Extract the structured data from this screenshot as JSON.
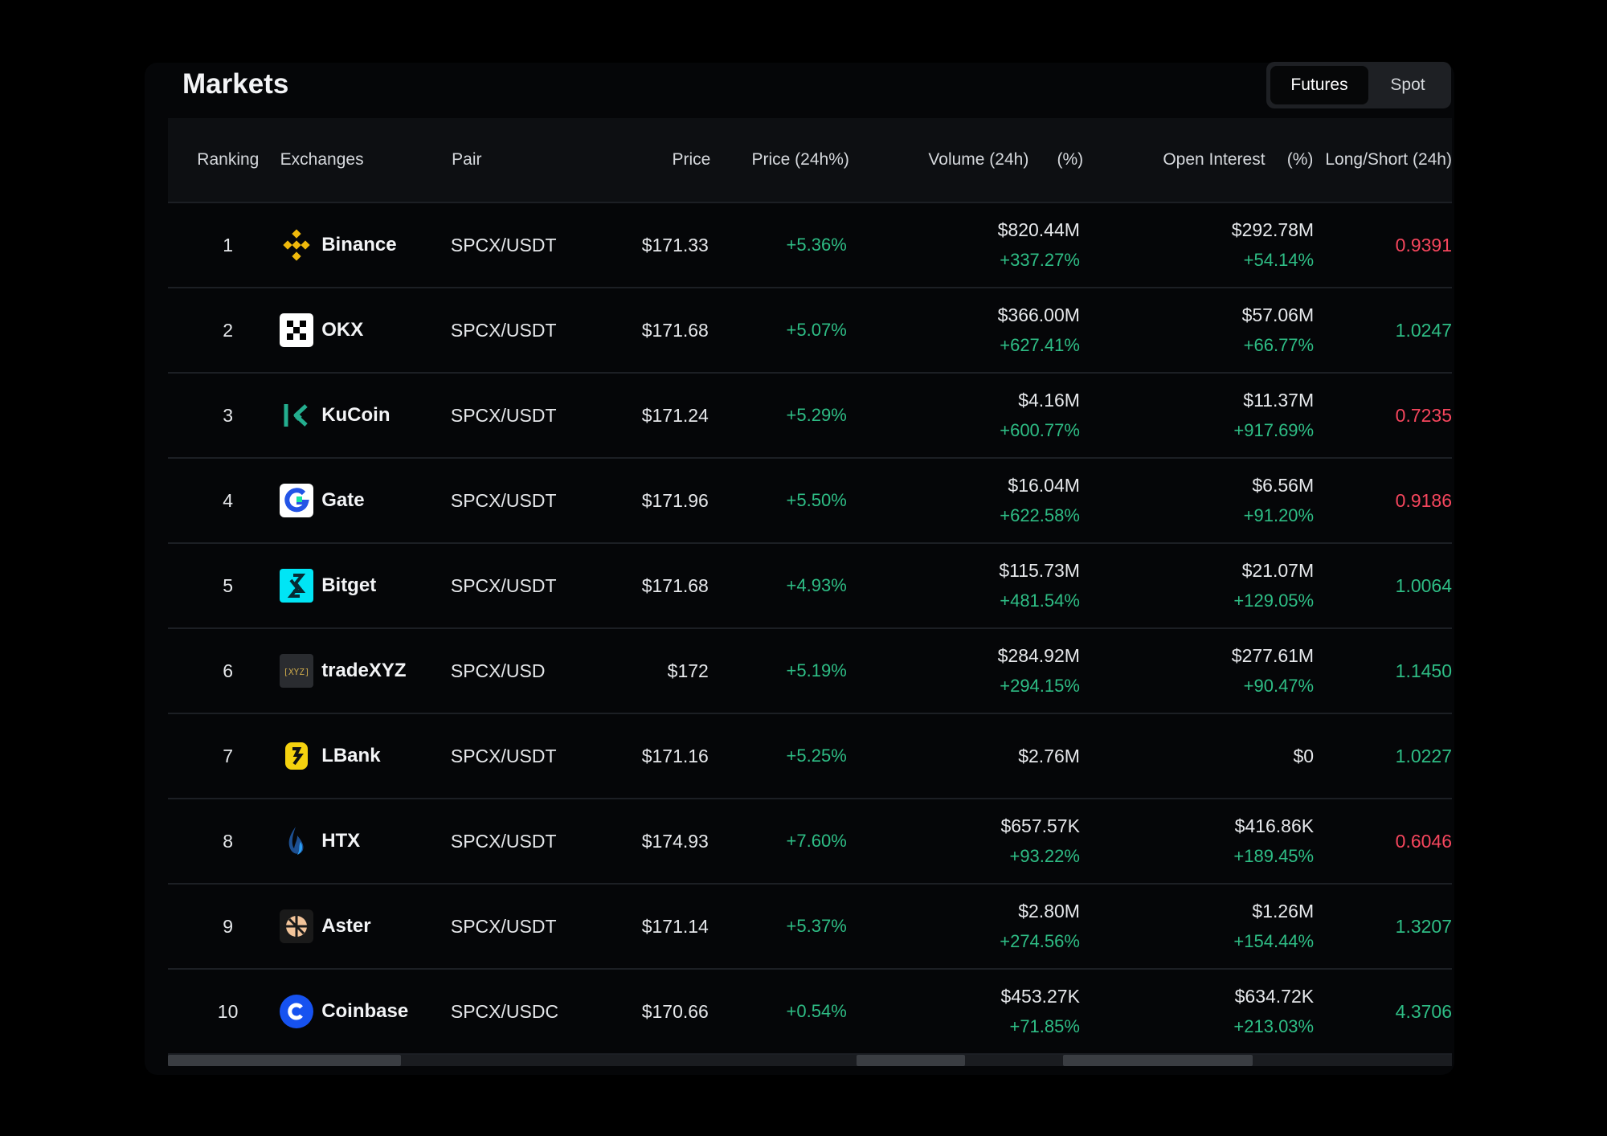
{
  "page": {
    "title": "Markets"
  },
  "toggle": {
    "futures": "Futures",
    "spot": "Spot",
    "active": "Futures"
  },
  "columns": {
    "ranking": "Ranking",
    "exchanges": "Exchanges",
    "pair": "Pair",
    "price": "Price",
    "price_24h": "Price (24h%)",
    "volume": "Volume (24h)",
    "volume_pct": "(%)",
    "open_interest": "Open Interest",
    "oi_pct": "(%)",
    "long_short": "Long/Short (24h)"
  },
  "colors": {
    "positive": "#2ebd85",
    "negative": "#f6465d",
    "background": "#000000"
  },
  "rows": [
    {
      "rank": "1",
      "exchange": "Binance",
      "icon": "binance-icon",
      "pair": "SPCX/USDT",
      "price": "$171.33",
      "price_change": "+5.36%",
      "volume": "$820.44M",
      "volume_change": "+337.27%",
      "oi": "$292.78M",
      "oi_change": "+54.14%",
      "ls": "0.9391",
      "ls_color": "red"
    },
    {
      "rank": "2",
      "exchange": "OKX",
      "icon": "okx-icon",
      "pair": "SPCX/USDT",
      "price": "$171.68",
      "price_change": "+5.07%",
      "volume": "$366.00M",
      "volume_change": "+627.41%",
      "oi": "$57.06M",
      "oi_change": "+66.77%",
      "ls": "1.0247",
      "ls_color": "green"
    },
    {
      "rank": "3",
      "exchange": "KuCoin",
      "icon": "kucoin-icon",
      "pair": "SPCX/USDT",
      "price": "$171.24",
      "price_change": "+5.29%",
      "volume": "$4.16M",
      "volume_change": "+600.77%",
      "oi": "$11.37M",
      "oi_change": "+917.69%",
      "ls": "0.7235",
      "ls_color": "red"
    },
    {
      "rank": "4",
      "exchange": "Gate",
      "icon": "gate-icon",
      "pair": "SPCX/USDT",
      "price": "$171.96",
      "price_change": "+5.50%",
      "volume": "$16.04M",
      "volume_change": "+622.58%",
      "oi": "$6.56M",
      "oi_change": "+91.20%",
      "ls": "0.9186",
      "ls_color": "red"
    },
    {
      "rank": "5",
      "exchange": "Bitget",
      "icon": "bitget-icon",
      "pair": "SPCX/USDT",
      "price": "$171.68",
      "price_change": "+4.93%",
      "volume": "$115.73M",
      "volume_change": "+481.54%",
      "oi": "$21.07M",
      "oi_change": "+129.05%",
      "ls": "1.0064",
      "ls_color": "green"
    },
    {
      "rank": "6",
      "exchange": "tradeXYZ",
      "icon": "tradexyz-icon",
      "icon_text": "[XYZ]",
      "pair": "SPCX/USD",
      "price": "$172",
      "price_change": "+5.19%",
      "volume": "$284.92M",
      "volume_change": "+294.15%",
      "oi": "$277.61M",
      "oi_change": "+90.47%",
      "ls": "1.1450",
      "ls_color": "green"
    },
    {
      "rank": "7",
      "exchange": "LBank",
      "icon": "lbank-icon",
      "pair": "SPCX/USDT",
      "price": "$171.16",
      "price_change": "+5.25%",
      "volume": "$2.76M",
      "volume_change": "",
      "oi": "$0",
      "oi_change": "",
      "ls": "1.0227",
      "ls_color": "green"
    },
    {
      "rank": "8",
      "exchange": "HTX",
      "icon": "htx-icon",
      "pair": "SPCX/USDT",
      "price": "$174.93",
      "price_change": "+7.60%",
      "volume": "$657.57K",
      "volume_change": "+93.22%",
      "oi": "$416.86K",
      "oi_change": "+189.45%",
      "ls": "0.6046",
      "ls_color": "red"
    },
    {
      "rank": "9",
      "exchange": "Aster",
      "icon": "aster-icon",
      "pair": "SPCX/USDT",
      "price": "$171.14",
      "price_change": "+5.37%",
      "volume": "$2.80M",
      "volume_change": "+274.56%",
      "oi": "$1.26M",
      "oi_change": "+154.44%",
      "ls": "1.3207",
      "ls_color": "green"
    },
    {
      "rank": "10",
      "exchange": "Coinbase",
      "icon": "coinbase-icon",
      "pair": "SPCX/USDC",
      "price": "$170.66",
      "price_change": "+0.54%",
      "volume": "$453.27K",
      "volume_change": "+71.85%",
      "oi": "$634.72K",
      "oi_change": "+213.03%",
      "ls": "4.3706",
      "ls_color": "green"
    }
  ]
}
